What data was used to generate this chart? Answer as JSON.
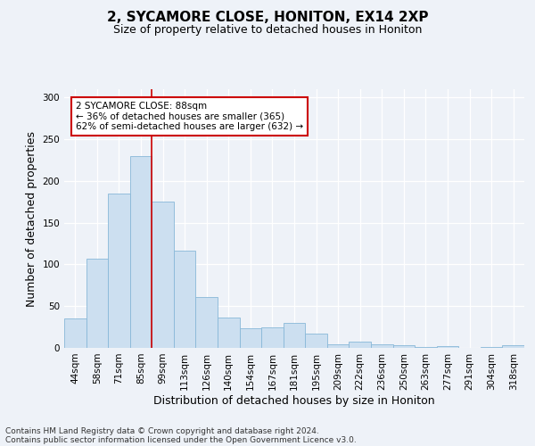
{
  "title": "2, SYCAMORE CLOSE, HONITON, EX14 2XP",
  "subtitle": "Size of property relative to detached houses in Honiton",
  "xlabel": "Distribution of detached houses by size in Honiton",
  "ylabel": "Number of detached properties",
  "categories": [
    "44sqm",
    "58sqm",
    "71sqm",
    "85sqm",
    "99sqm",
    "113sqm",
    "126sqm",
    "140sqm",
    "154sqm",
    "167sqm",
    "181sqm",
    "195sqm",
    "209sqm",
    "222sqm",
    "236sqm",
    "250sqm",
    "263sqm",
    "277sqm",
    "291sqm",
    "304sqm",
    "318sqm"
  ],
  "values": [
    35,
    107,
    185,
    230,
    175,
    116,
    61,
    36,
    23,
    25,
    30,
    17,
    4,
    7,
    4,
    3,
    1,
    2,
    0,
    1,
    3
  ],
  "bar_color": "#ccdff0",
  "bar_edge_color": "#88b8d8",
  "vline_index": 3.5,
  "vline_color": "#cc0000",
  "annotation_text": "2 SYCAMORE CLOSE: 88sqm\n← 36% of detached houses are smaller (365)\n62% of semi-detached houses are larger (632) →",
  "annotation_box_color": "white",
  "annotation_box_edge": "#cc0000",
  "ylim": [
    0,
    310
  ],
  "yticks": [
    0,
    50,
    100,
    150,
    200,
    250,
    300
  ],
  "footer_line1": "Contains HM Land Registry data © Crown copyright and database right 2024.",
  "footer_line2": "Contains public sector information licensed under the Open Government Licence v3.0.",
  "bg_color": "#eef2f8",
  "grid_color": "#ffffff",
  "title_fontsize": 11,
  "subtitle_fontsize": 9,
  "axis_label_fontsize": 9,
  "tick_fontsize": 7.5,
  "footer_fontsize": 6.5,
  "annotation_fontsize": 7.5
}
